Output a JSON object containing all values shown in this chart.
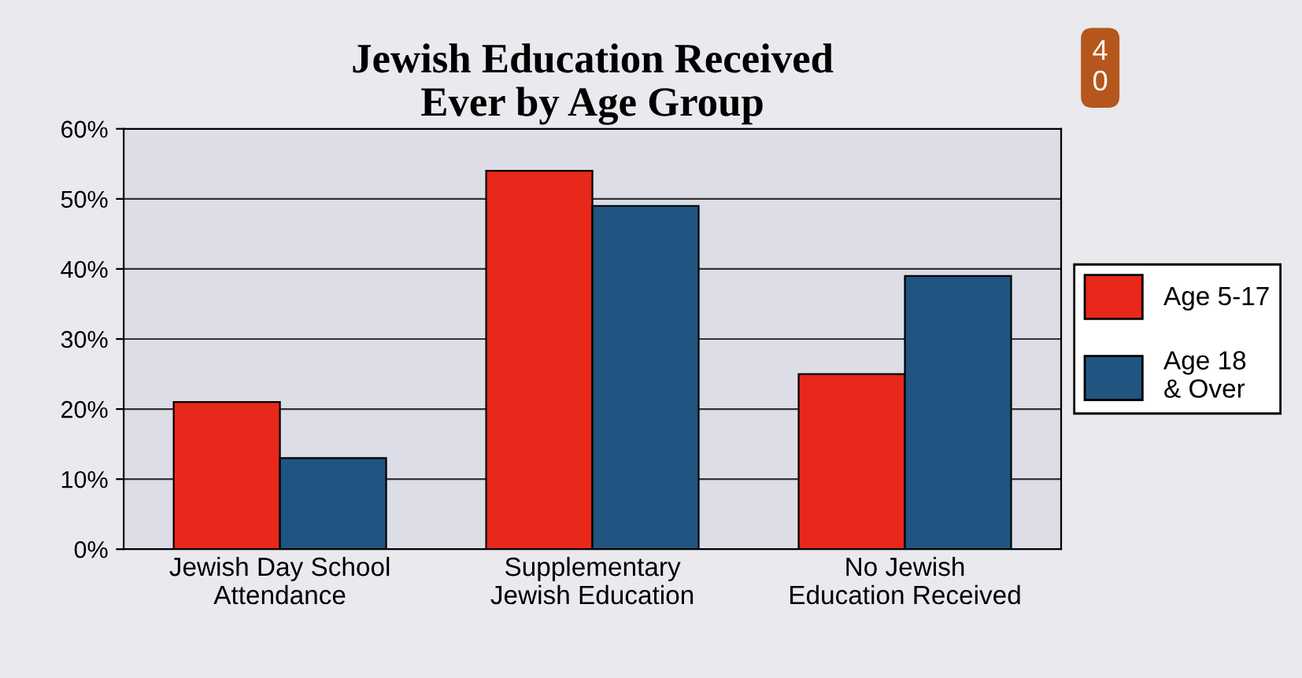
{
  "chart_data": {
    "type": "bar",
    "title": "Jewish Education Received\nEver by Age Group",
    "categories": [
      "Jewish Day School\nAttendance",
      "Supplementary\nJewish Education",
      "No Jewish\nEducation Received"
    ],
    "series": [
      {
        "name": "Age 5-17",
        "color": "#e8281a",
        "values": [
          21,
          54,
          25
        ]
      },
      {
        "name": "Age 18\n& Over",
        "color": "#1f5580",
        "values": [
          13,
          49,
          39
        ]
      }
    ],
    "ylim": [
      0,
      60
    ],
    "yticks": [
      {
        "value": 0,
        "label": "0%"
      },
      {
        "value": 10,
        "label": "10%"
      },
      {
        "value": 20,
        "label": "20%"
      },
      {
        "value": 30,
        "label": "30%"
      },
      {
        "value": 40,
        "label": "40%"
      },
      {
        "value": 50,
        "label": "50%"
      },
      {
        "value": 60,
        "label": "60%"
      }
    ],
    "grid": "y",
    "legend": "right",
    "annotations": [
      "40"
    ]
  }
}
